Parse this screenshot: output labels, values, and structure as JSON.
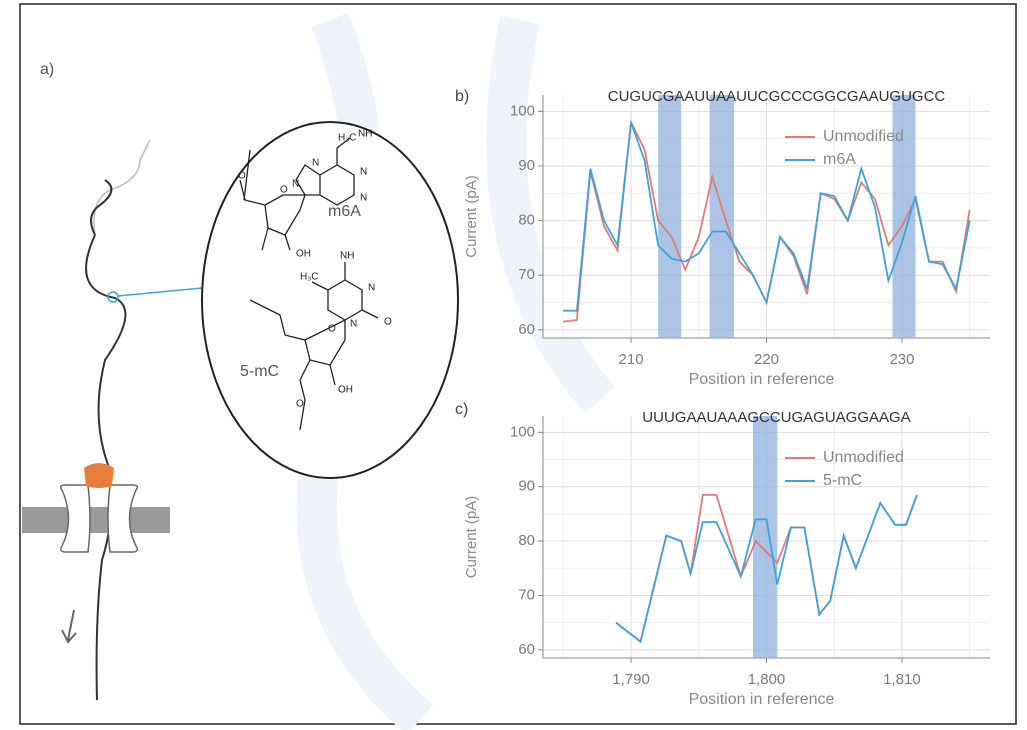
{
  "diagram": {
    "panel_label": "a)",
    "molecules": [
      {
        "name": "m6A",
        "atoms": [
          "H₃C",
          "NH",
          "N",
          "N",
          "N",
          "N",
          "O",
          "OH",
          "O"
        ]
      },
      {
        "name": "5-mC",
        "atoms": [
          "NH",
          "H₃C",
          "N",
          "N",
          "O",
          "O",
          "OH",
          "O"
        ]
      }
    ]
  },
  "chart_data": [
    {
      "type": "line",
      "panel_label": "b)",
      "title": "CUGUCGAAUUAAUUCGCCCGGCGAAUGUGCC",
      "x_label": "Position in reference",
      "y_label": "Current (pA)",
      "x": [
        205,
        206,
        207,
        208,
        209,
        210,
        211,
        212,
        213,
        214,
        215,
        216,
        217,
        218,
        219,
        220,
        221,
        222,
        223,
        224,
        225,
        226,
        227,
        228,
        229,
        230,
        231,
        232,
        233,
        234,
        235
      ],
      "series": [
        {
          "name": "Unmodified",
          "color": "#e07a7a",
          "values": [
            61.5,
            61.8,
            89,
            79,
            74.5,
            98,
            93,
            80,
            77,
            71,
            77,
            88,
            80,
            72.5,
            70,
            65,
            77,
            73.5,
            66.5,
            85,
            84,
            80,
            87,
            84,
            75.5,
            79,
            84,
            72.5,
            72.5,
            67,
            82
          ]
        },
        {
          "name": "m6A",
          "color": "#3fa3d8",
          "values": [
            63.5,
            63.5,
            89.5,
            80,
            75.5,
            98,
            91,
            75.5,
            73,
            72.5,
            74,
            78,
            78,
            74,
            70,
            65,
            77,
            74,
            67.5,
            85,
            84.5,
            80,
            89.5,
            82.5,
            69,
            76,
            84.5,
            72.5,
            72,
            67.5,
            80
          ]
        }
      ],
      "highlights": [
        [
          212,
          213.7
        ],
        [
          215.8,
          217.6
        ],
        [
          229.3,
          231
        ]
      ],
      "highlight_color": "#8fb0dc",
      "xlim": [
        203.5,
        236.5
      ],
      "ylim": [
        58.5,
        103
      ],
      "xticks": [
        210,
        220,
        230
      ],
      "yticks": [
        60,
        70,
        80,
        90,
        100
      ],
      "minor_xticks": [
        205,
        215,
        225,
        235
      ],
      "minor_yticks": [
        65,
        75,
        85,
        95
      ],
      "grid": true,
      "legend": "upper right"
    },
    {
      "type": "line",
      "panel_label": "c)",
      "title": "UUUGAAUAAAGCCUGAGUAGGAAGA",
      "x_label": "Position in reference",
      "y_label": "Current (pA)",
      "x": [
        1788.9,
        1790.7,
        1792.6,
        1793.7,
        1794.4,
        1795.3,
        1796.3,
        1798.1,
        1799.2,
        1800,
        1800.8,
        1801.8,
        1802.8,
        1803.9,
        1804.7,
        1805.7,
        1806.6,
        1808.4,
        1809.5,
        1810.3,
        1811.1
      ],
      "series": [
        {
          "name": "Unmodified",
          "color": "#e07a7a",
          "values": [
            65,
            61.5,
            81,
            80,
            74,
            88.5,
            88.5,
            73.5,
            80,
            78,
            76,
            82.5,
            82.5,
            66.5,
            69,
            81,
            75,
            87,
            83,
            83,
            88.5
          ]
        },
        {
          "name": "5-mC",
          "color": "#3fa3d8",
          "values": [
            65,
            61.5,
            81,
            80,
            74,
            83.5,
            83.5,
            73.5,
            84,
            84,
            72,
            82.5,
            82.5,
            66.5,
            69,
            81,
            75,
            87,
            83,
            83,
            88.5
          ]
        }
      ],
      "highlights": [
        [
          1799,
          1800.8
        ]
      ],
      "highlight_color": "#8fb0dc",
      "xlim": [
        1783.5,
        1816.5
      ],
      "ylim": [
        58.5,
        103
      ],
      "xticks": [
        {
          "value": 1790,
          "label": "1,790"
        },
        {
          "value": 1800,
          "label": "1,800"
        },
        {
          "value": 1810,
          "label": "1,810"
        }
      ],
      "yticks": [
        60,
        70,
        80,
        90,
        100
      ],
      "minor_xticks": [
        1785,
        1795,
        1805,
        1815
      ],
      "minor_yticks": [
        65,
        75,
        85,
        95
      ],
      "grid": true,
      "legend": "upper right"
    }
  ]
}
